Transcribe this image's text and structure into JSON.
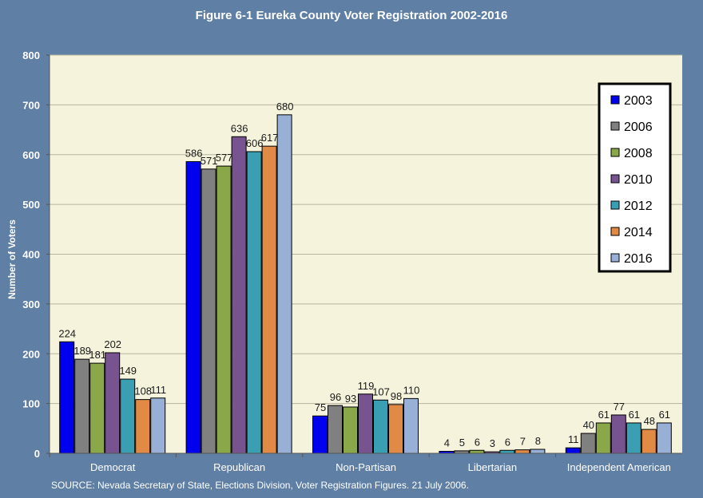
{
  "chart_data": {
    "type": "bar",
    "title": "Figure 6-1 Eureka County Voter Registration 2002-2016",
    "xlabel": "",
    "ylabel": "Number of Voters",
    "ylim": [
      0,
      800
    ],
    "yticks": [
      0,
      100,
      200,
      300,
      400,
      500,
      600,
      700,
      800
    ],
    "grid": true,
    "legend_position": "right",
    "categories": [
      "Democrat",
      "Republican",
      "Non-Partisan",
      "Libertarian",
      "Independent American"
    ],
    "series": [
      {
        "name": "2003",
        "color": "#0000ee",
        "values": [
          224,
          586,
          75,
          4,
          11
        ]
      },
      {
        "name": "2006",
        "color": "#808080",
        "values": [
          189,
          571,
          96,
          5,
          40
        ]
      },
      {
        "name": "2008",
        "color": "#8aa84a",
        "values": [
          181,
          577,
          93,
          6,
          61
        ]
      },
      {
        "name": "2010",
        "color": "#77538f",
        "values": [
          202,
          636,
          119,
          3,
          77
        ]
      },
      {
        "name": "2012",
        "color": "#3a9fb3",
        "values": [
          149,
          606,
          107,
          6,
          61
        ]
      },
      {
        "name": "2014",
        "color": "#e08a45",
        "values": [
          108,
          617,
          98,
          7,
          48
        ]
      },
      {
        "name": "2016",
        "color": "#98afd6",
        "values": [
          111,
          680,
          110,
          8,
          61
        ]
      }
    ],
    "data_labels": [
      [
        "224",
        "189",
        "181",
        "202",
        "149",
        "108",
        "111"
      ],
      [
        "586",
        "571",
        "577",
        "636",
        "606",
        "617",
        "680"
      ],
      [
        "75",
        "96",
        "93",
        "119",
        "107",
        "98",
        "110"
      ],
      [
        "4",
        "5",
        "6",
        "3",
        "6",
        "7",
        "8"
      ],
      [
        "11",
        "40",
        "61",
        "77",
        "61",
        "48",
        "61"
      ]
    ],
    "source": "SOURCE: Nevada Secretary of State, Elections Division, Voter Registration Figures. 21 July 2006."
  },
  "colors": {
    "page_background": "#5f7fa5",
    "plot_background": "#f5f3dc",
    "gridline": "#b7b59f"
  }
}
